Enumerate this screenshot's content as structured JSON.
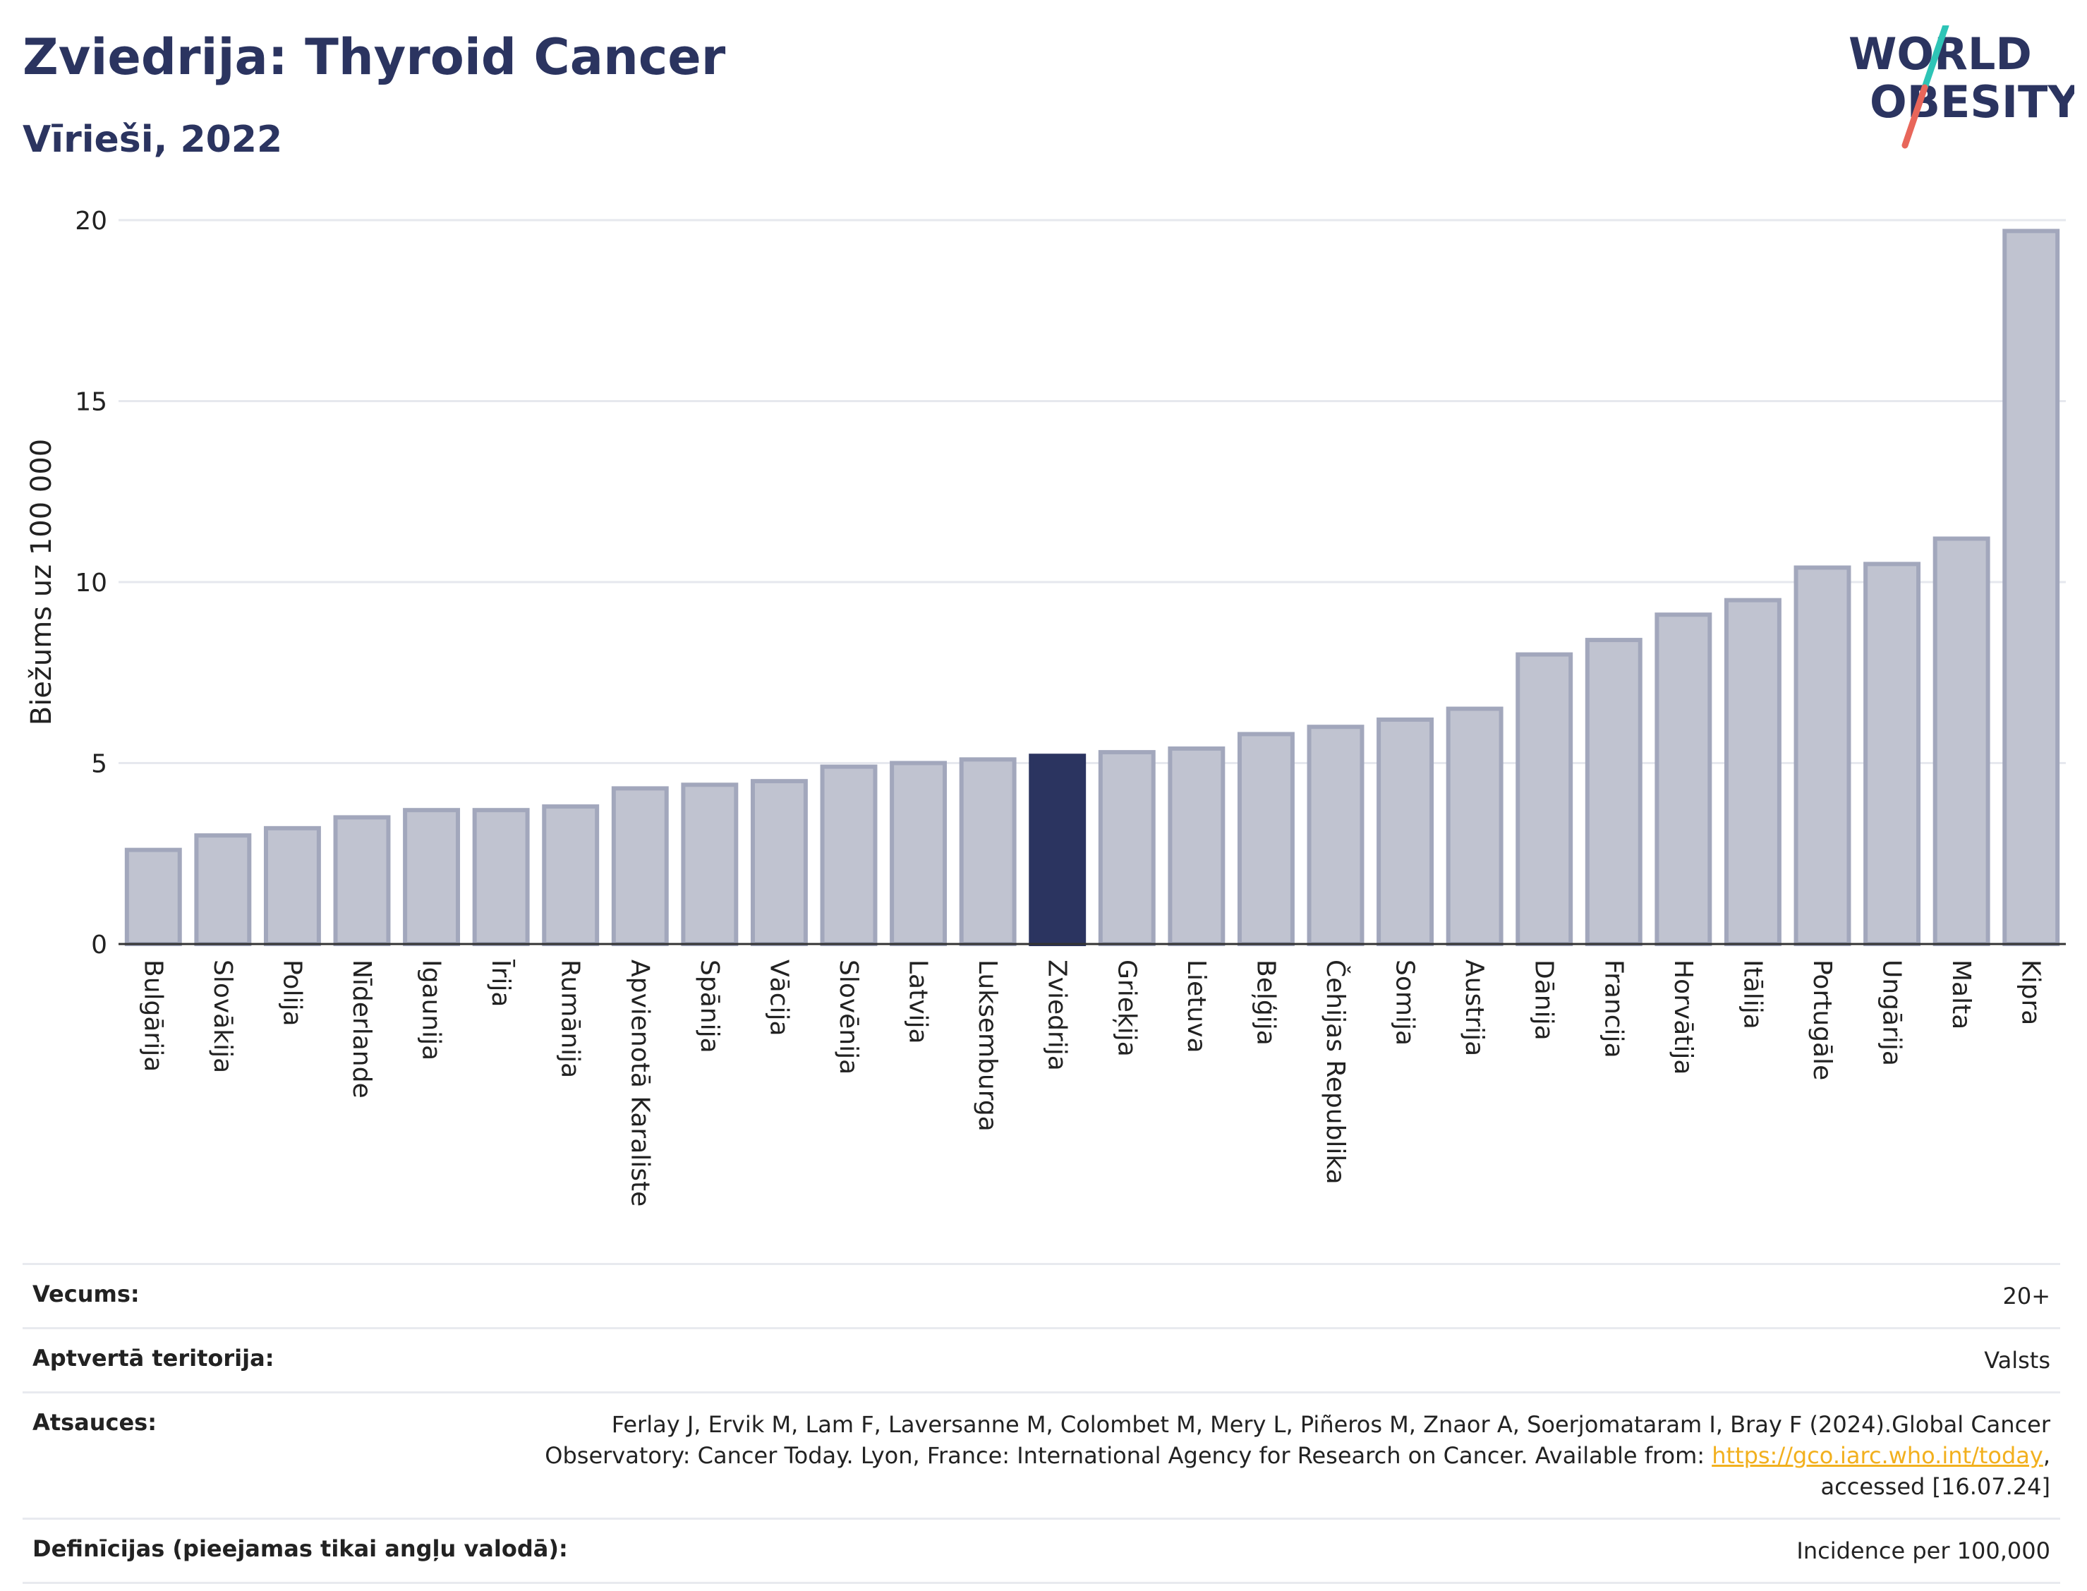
{
  "header": {
    "title": "Zviedrija: Thyroid Cancer",
    "subtitle": "Vīrieši, 2022"
  },
  "logo": {
    "line1": "WORLD",
    "line2": "OBESITY"
  },
  "colors": {
    "accent": "#2b3460",
    "bar_fill": "#c0c3d0",
    "bar_stroke": "#a2a7bc",
    "grid": "#e6e8ee",
    "link": "#f2b01e",
    "logo_teal": "#2ec4b6",
    "logo_red": "#e8665a"
  },
  "chart_data": {
    "type": "bar",
    "ylabel": "Biežums uz 100 000",
    "ylim": [
      0,
      20
    ],
    "yticks": [
      "0",
      "5",
      "10",
      "15",
      "20"
    ],
    "grid": true,
    "highlight": "Zviedrija",
    "categories": [
      "Bulgārija",
      "Slovākija",
      "Polija",
      "Nīderlande",
      "Igaunija",
      "Īrija",
      "Rumānija",
      "Apvienotā Karaliste",
      "Spānija",
      "Vācija",
      "Slovēnija",
      "Latvija",
      "Luksemburga",
      "Zviedrija",
      "Grieķija",
      "Lietuva",
      "Beļģija",
      "Čehijas Republika",
      "Somija",
      "Austrija",
      "Dānija",
      "Francija",
      "Horvātija",
      "Itālija",
      "Portugāle",
      "Ungārija",
      "Malta",
      "Kipra"
    ],
    "values": [
      2.6,
      3.0,
      3.2,
      3.5,
      3.7,
      3.7,
      3.8,
      4.3,
      4.4,
      4.5,
      4.9,
      5.0,
      5.1,
      5.2,
      5.3,
      5.4,
      5.8,
      6.0,
      6.2,
      6.5,
      8.0,
      8.4,
      9.1,
      9.5,
      10.4,
      10.5,
      11.2,
      19.7
    ]
  },
  "info": {
    "age_label": "Vecums:",
    "age_value": "20+",
    "coverage_label": "Aptvertā teritorija:",
    "coverage_value": "Valsts",
    "refs_label": "Atsauces:",
    "refs_line1": "Ferlay J, Ervik M, Lam F, Laversanne M, Colombet M, Mery L, Piñeros M, Znaor A, Soerjomataram I, Bray F (2024).Global Cancer",
    "refs_line2_prefix": "Observatory: Cancer Today. Lyon, France: International Agency for Research on Cancer. Available from: ",
    "refs_link": "https://gco.iarc.who.int/today",
    "refs_line2_suffix": ",",
    "refs_line3": "accessed [16.07.24]",
    "defs_label": "Definīcijas (pieejamas tikai angļu valodā):",
    "defs_value": "Incidence per 100,000"
  }
}
